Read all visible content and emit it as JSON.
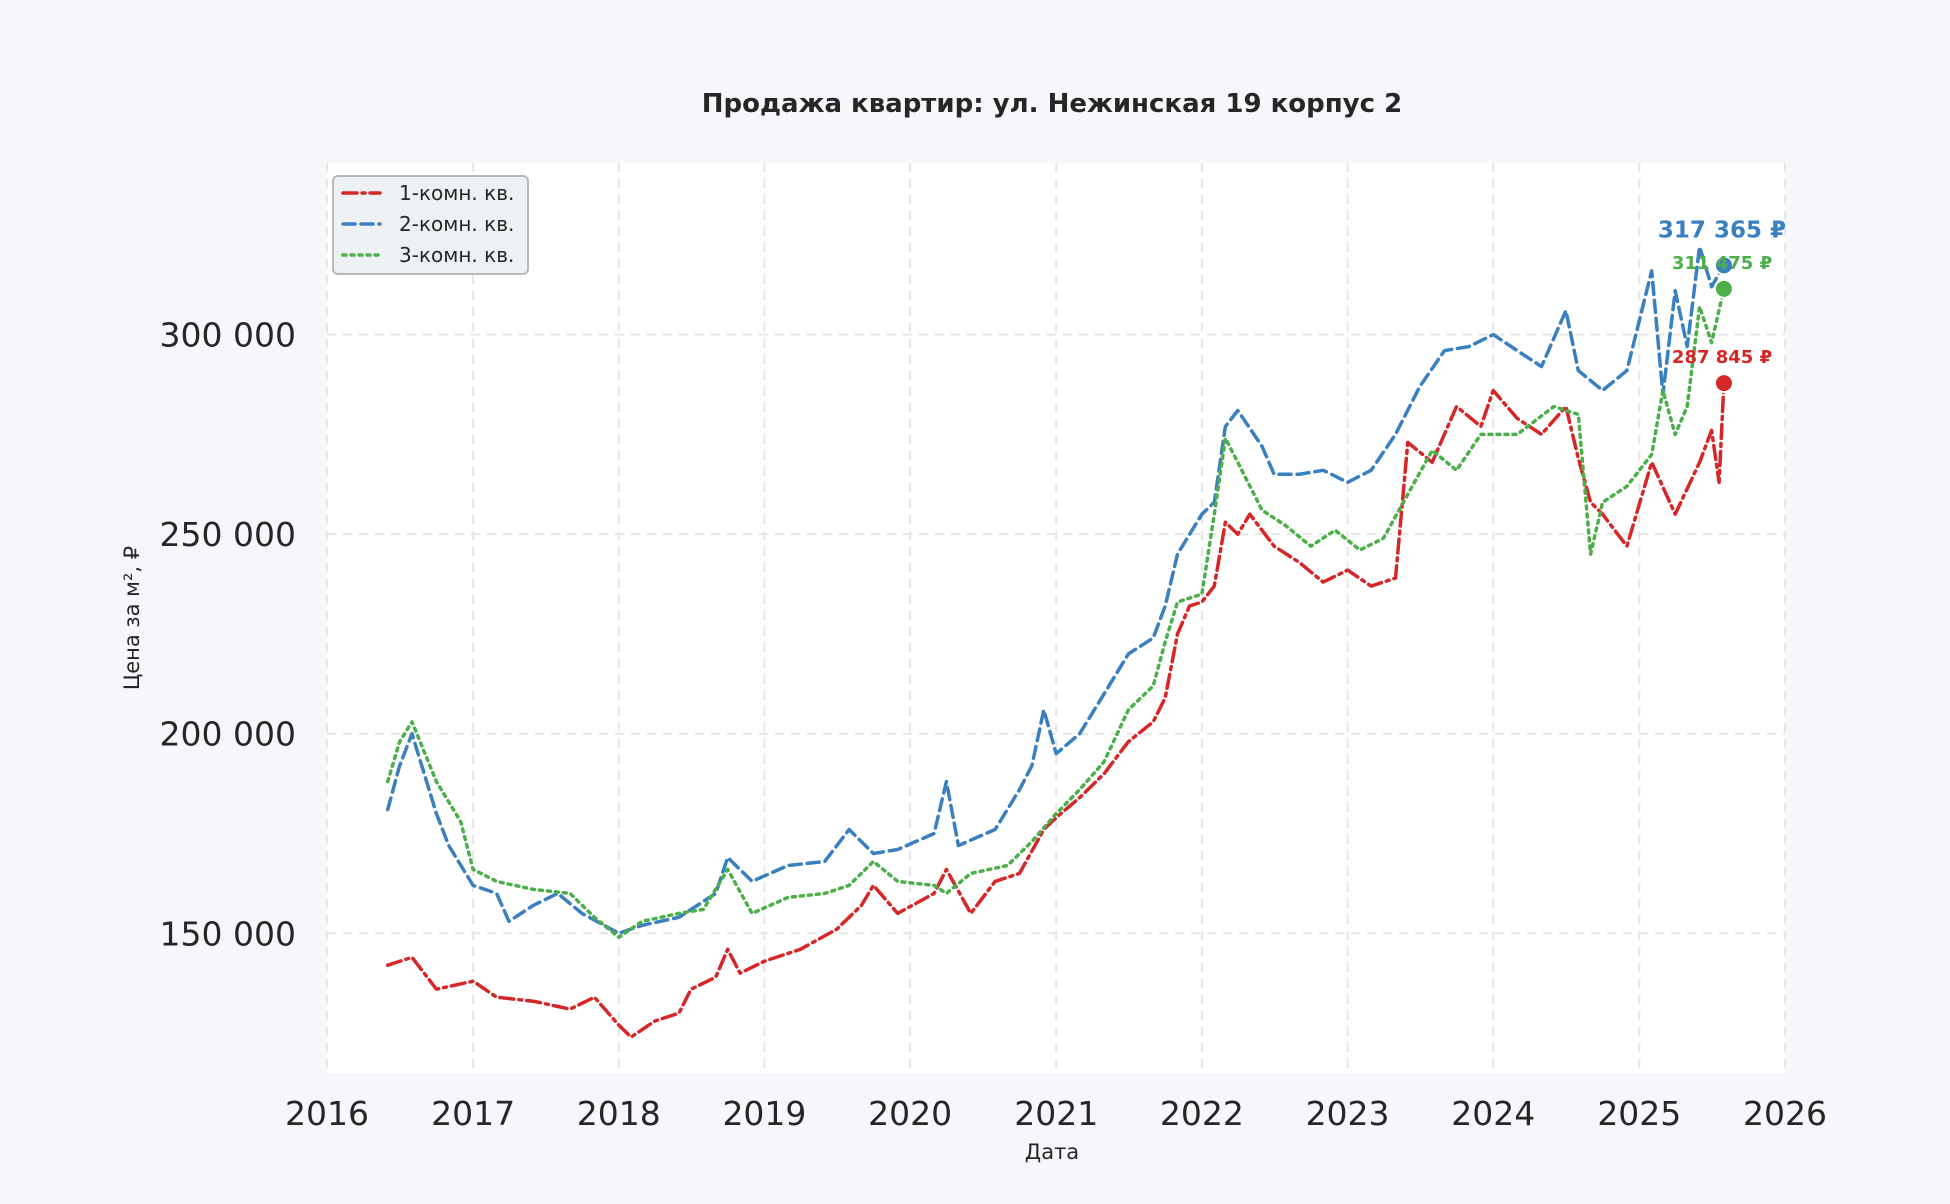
{
  "chart_data": {
    "type": "line",
    "title": "Продажа квартир: ул. Нежинская 19 корпус 2",
    "xlabel": "Дата",
    "ylabel": "Цена за м², ₽",
    "xlim": [
      "2016-01-01",
      "2026-01-01"
    ],
    "ylim": [
      115000,
      343000
    ],
    "x_ticks": [
      "2016",
      "2017",
      "2018",
      "2019",
      "2020",
      "2021",
      "2022",
      "2023",
      "2024",
      "2025",
      "2026"
    ],
    "y_ticks": [
      150000,
      200000,
      250000,
      300000
    ],
    "y_tick_labels": [
      "150 000",
      "200 000",
      "250 000",
      "300 000"
    ],
    "grid": true,
    "legend_position": "top-left",
    "colors": {
      "page_bg": "#f5f7fa",
      "plot_bg": "#ffffff",
      "grid": "#e6e6e6"
    },
    "series": [
      {
        "name": "1-комн. кв.",
        "color": "#d62728",
        "dash": "dashdot",
        "points": [
          [
            "2016-06-01",
            142000
          ],
          [
            "2016-08-01",
            144000
          ],
          [
            "2016-10-01",
            136000
          ],
          [
            "2017-01-01",
            138000
          ],
          [
            "2017-03-01",
            134000
          ],
          [
            "2017-06-01",
            133000
          ],
          [
            "2017-09-01",
            131000
          ],
          [
            "2017-11-01",
            134000
          ],
          [
            "2018-01-01",
            127000
          ],
          [
            "2018-02-01",
            124000
          ],
          [
            "2018-04-01",
            128000
          ],
          [
            "2018-06-01",
            130000
          ],
          [
            "2018-07-01",
            136000
          ],
          [
            "2018-09-01",
            139000
          ],
          [
            "2018-10-01",
            146000
          ],
          [
            "2018-11-01",
            140000
          ],
          [
            "2019-01-01",
            143000
          ],
          [
            "2019-04-01",
            146000
          ],
          [
            "2019-07-01",
            151000
          ],
          [
            "2019-09-01",
            157000
          ],
          [
            "2019-10-01",
            162000
          ],
          [
            "2019-12-01",
            155000
          ],
          [
            "2020-03-01",
            160000
          ],
          [
            "2020-04-01",
            166000
          ],
          [
            "2020-06-01",
            155000
          ],
          [
            "2020-08-01",
            163000
          ],
          [
            "2020-10-01",
            165000
          ],
          [
            "2020-12-01",
            176000
          ],
          [
            "2021-01-01",
            179000
          ],
          [
            "2021-03-01",
            184000
          ],
          [
            "2021-05-01",
            190000
          ],
          [
            "2021-07-01",
            198000
          ],
          [
            "2021-09-01",
            203000
          ],
          [
            "2021-10-01",
            209000
          ],
          [
            "2021-11-01",
            225000
          ],
          [
            "2021-12-01",
            232000
          ],
          [
            "2022-01-01",
            233000
          ],
          [
            "2022-02-01",
            237000
          ],
          [
            "2022-03-01",
            253000
          ],
          [
            "2022-04-01",
            250000
          ],
          [
            "2022-05-01",
            255000
          ],
          [
            "2022-07-01",
            247000
          ],
          [
            "2022-09-01",
            243000
          ],
          [
            "2022-11-01",
            238000
          ],
          [
            "2023-01-01",
            241000
          ],
          [
            "2023-03-01",
            237000
          ],
          [
            "2023-05-01",
            239000
          ],
          [
            "2023-06-01",
            273000
          ],
          [
            "2023-08-01",
            268000
          ],
          [
            "2023-10-01",
            282000
          ],
          [
            "2023-12-01",
            277000
          ],
          [
            "2024-01-01",
            286000
          ],
          [
            "2024-03-01",
            279000
          ],
          [
            "2024-05-01",
            275000
          ],
          [
            "2024-07-01",
            282000
          ],
          [
            "2024-08-01",
            269000
          ],
          [
            "2024-09-01",
            258000
          ],
          [
            "2024-10-01",
            255000
          ],
          [
            "2024-12-01",
            247000
          ],
          [
            "2025-02-01",
            268000
          ],
          [
            "2025-04-01",
            255000
          ],
          [
            "2025-06-01",
            268000
          ],
          [
            "2025-07-01",
            276000
          ],
          [
            "2025-07-20",
            263000
          ],
          [
            "2025-08-01",
            287845
          ]
        ]
      },
      {
        "name": "2-комн. кв.",
        "color": "#3a7fbf",
        "dash": "dashed",
        "points": [
          [
            "2016-06-01",
            181000
          ],
          [
            "2016-07-01",
            192000
          ],
          [
            "2016-08-01",
            200000
          ],
          [
            "2016-10-01",
            180000
          ],
          [
            "2016-11-01",
            172000
          ],
          [
            "2017-01-01",
            162000
          ],
          [
            "2017-03-01",
            160000
          ],
          [
            "2017-04-01",
            153000
          ],
          [
            "2017-06-01",
            157000
          ],
          [
            "2017-08-01",
            160000
          ],
          [
            "2017-10-01",
            155000
          ],
          [
            "2018-01-01",
            150000
          ],
          [
            "2018-03-01",
            152000
          ],
          [
            "2018-06-01",
            154000
          ],
          [
            "2018-09-01",
            160000
          ],
          [
            "2018-10-01",
            169000
          ],
          [
            "2018-12-01",
            163000
          ],
          [
            "2019-03-01",
            167000
          ],
          [
            "2019-06-01",
            168000
          ],
          [
            "2019-08-01",
            176000
          ],
          [
            "2019-10-01",
            170000
          ],
          [
            "2019-12-01",
            171000
          ],
          [
            "2020-03-01",
            175000
          ],
          [
            "2020-04-01",
            188000
          ],
          [
            "2020-05-01",
            172000
          ],
          [
            "2020-08-01",
            176000
          ],
          [
            "2020-10-01",
            186000
          ],
          [
            "2020-11-01",
            192000
          ],
          [
            "2020-12-01",
            206000
          ],
          [
            "2021-01-01",
            195000
          ],
          [
            "2021-03-01",
            200000
          ],
          [
            "2021-05-01",
            210000
          ],
          [
            "2021-07-01",
            220000
          ],
          [
            "2021-09-01",
            224000
          ],
          [
            "2021-10-01",
            232000
          ],
          [
            "2021-11-01",
            245000
          ],
          [
            "2022-01-01",
            255000
          ],
          [
            "2022-02-01",
            258000
          ],
          [
            "2022-03-01",
            277000
          ],
          [
            "2022-04-01",
            281000
          ],
          [
            "2022-06-01",
            272000
          ],
          [
            "2022-07-01",
            265000
          ],
          [
            "2022-09-01",
            265000
          ],
          [
            "2022-11-01",
            266000
          ],
          [
            "2023-01-01",
            263000
          ],
          [
            "2023-03-01",
            266000
          ],
          [
            "2023-05-01",
            275000
          ],
          [
            "2023-07-01",
            287000
          ],
          [
            "2023-09-01",
            296000
          ],
          [
            "2023-11-01",
            297000
          ],
          [
            "2024-01-01",
            300000
          ],
          [
            "2024-03-01",
            296000
          ],
          [
            "2024-05-01",
            292000
          ],
          [
            "2024-07-01",
            306000
          ],
          [
            "2024-08-01",
            291000
          ],
          [
            "2024-10-01",
            286000
          ],
          [
            "2024-12-01",
            291000
          ],
          [
            "2025-02-01",
            316000
          ],
          [
            "2025-03-01",
            285000
          ],
          [
            "2025-04-01",
            311000
          ],
          [
            "2025-05-01",
            297000
          ],
          [
            "2025-06-01",
            322000
          ],
          [
            "2025-07-01",
            312000
          ],
          [
            "2025-08-01",
            317365
          ]
        ]
      },
      {
        "name": "3-комн. кв.",
        "color": "#4daf4a",
        "dash": "dotted",
        "points": [
          [
            "2016-06-01",
            188000
          ],
          [
            "2016-07-01",
            198000
          ],
          [
            "2016-08-01",
            203000
          ],
          [
            "2016-10-01",
            188000
          ],
          [
            "2016-12-01",
            178000
          ],
          [
            "2017-01-01",
            166000
          ],
          [
            "2017-03-01",
            163000
          ],
          [
            "2017-06-01",
            161000
          ],
          [
            "2017-09-01",
            160000
          ],
          [
            "2017-11-01",
            154000
          ],
          [
            "2018-01-01",
            149000
          ],
          [
            "2018-03-01",
            153000
          ],
          [
            "2018-06-01",
            155000
          ],
          [
            "2018-08-01",
            156000
          ],
          [
            "2018-10-01",
            166000
          ],
          [
            "2018-12-01",
            155000
          ],
          [
            "2019-03-01",
            159000
          ],
          [
            "2019-06-01",
            160000
          ],
          [
            "2019-08-01",
            162000
          ],
          [
            "2019-10-01",
            168000
          ],
          [
            "2019-12-01",
            163000
          ],
          [
            "2020-03-01",
            162000
          ],
          [
            "2020-04-01",
            160000
          ],
          [
            "2020-06-01",
            165000
          ],
          [
            "2020-09-01",
            167000
          ],
          [
            "2020-11-01",
            173000
          ],
          [
            "2021-01-01",
            180000
          ],
          [
            "2021-03-01",
            186000
          ],
          [
            "2021-05-01",
            193000
          ],
          [
            "2021-07-01",
            206000
          ],
          [
            "2021-09-01",
            212000
          ],
          [
            "2021-10-01",
            223000
          ],
          [
            "2021-11-01",
            233000
          ],
          [
            "2022-01-01",
            235000
          ],
          [
            "2022-02-01",
            255000
          ],
          [
            "2022-03-01",
            274000
          ],
          [
            "2022-04-01",
            268000
          ],
          [
            "2022-06-01",
            256000
          ],
          [
            "2022-08-01",
            252000
          ],
          [
            "2022-10-01",
            247000
          ],
          [
            "2022-12-01",
            251000
          ],
          [
            "2023-02-01",
            246000
          ],
          [
            "2023-04-01",
            249000
          ],
          [
            "2023-06-01",
            260000
          ],
          [
            "2023-08-01",
            271000
          ],
          [
            "2023-10-01",
            266000
          ],
          [
            "2023-12-01",
            275000
          ],
          [
            "2024-03-01",
            275000
          ],
          [
            "2024-06-01",
            282000
          ],
          [
            "2024-08-01",
            280000
          ],
          [
            "2024-09-01",
            245000
          ],
          [
            "2024-10-01",
            258000
          ],
          [
            "2024-12-01",
            262000
          ],
          [
            "2025-02-01",
            270000
          ],
          [
            "2025-03-01",
            286000
          ],
          [
            "2025-04-01",
            275000
          ],
          [
            "2025-05-01",
            282000
          ],
          [
            "2025-06-01",
            307000
          ],
          [
            "2025-07-01",
            298000
          ],
          [
            "2025-08-01",
            311475
          ]
        ]
      }
    ],
    "annotations": [
      {
        "series": "2-комн. кв.",
        "x": "2025-08-01",
        "y": 317365,
        "text": "317 365 ₽"
      },
      {
        "series": "3-комн. кв.",
        "x": "2025-08-01",
        "y": 311475,
        "text": "311 475 ₽"
      },
      {
        "series": "1-комн. кв.",
        "x": "2025-08-01",
        "y": 287845,
        "text": "287 845 ₽"
      }
    ]
  }
}
